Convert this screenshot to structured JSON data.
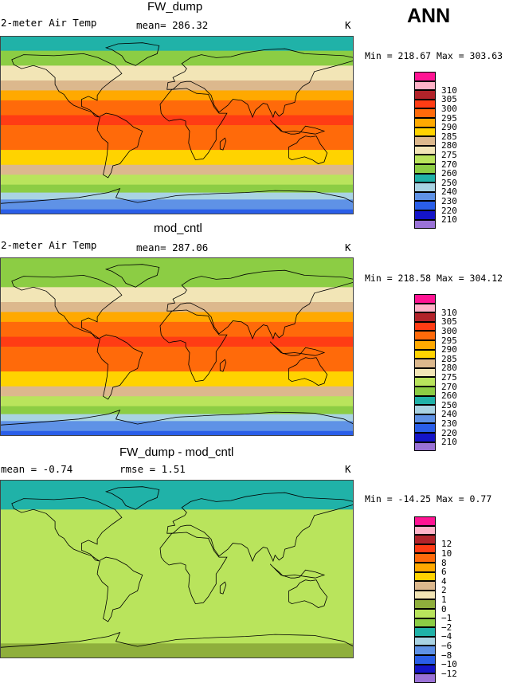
{
  "season": "ANN",
  "palettes": {
    "temp": [
      "#9a72d6",
      "#1414c8",
      "#2a5ee8",
      "#5f92e6",
      "#a9d3e3",
      "#20b2a8",
      "#8ccd44",
      "#b9e45c",
      "#f2e5b6",
      "#dcb88d",
      "#ffd300",
      "#ffa900",
      "#ff6a0a",
      "#ff3c14",
      "#b2232a",
      "#ffb3c8",
      "#ff1493"
    ],
    "diff": [
      "#9a72d6",
      "#1414c8",
      "#2a5ee8",
      "#5f92e6",
      "#a9d3e3",
      "#20b2a8",
      "#8ccd44",
      "#b9e45c",
      "#8faf3c",
      "#f2e5b6",
      "#dcb88d",
      "#ffd300",
      "#ffa900",
      "#ff6a0a",
      "#ff3c14",
      "#b2232a",
      "#ffb3c8",
      "#ff1493"
    ]
  },
  "panels": [
    {
      "title": "FW_dump",
      "left_label": "2-meter Air Temp",
      "center_label": "mean= 286.32",
      "units": "K",
      "minmax": "Min = 218.67 Max = 303.63",
      "legend_ticks": [
        "310",
        "305",
        "300",
        "295",
        "290",
        "285",
        "280",
        "275",
        "270",
        "260",
        "250",
        "240",
        "230",
        "220",
        "210"
      ]
    },
    {
      "title": "mod_cntl",
      "left_label": "2-meter Air Temp",
      "center_label": "mean= 287.06",
      "units": "K",
      "minmax": "Min = 218.58 Max = 304.12",
      "legend_ticks": [
        "310",
        "305",
        "300",
        "295",
        "290",
        "285",
        "280",
        "275",
        "270",
        "260",
        "250",
        "240",
        "230",
        "220",
        "210"
      ]
    },
    {
      "title": "FW_dump - mod_cntl",
      "left_label": "mean =   -0.74",
      "center_label": "rmse =    1.51",
      "units": "K",
      "minmax": "Min = -14.25 Max =    0.77",
      "legend_ticks": [
        "12",
        "10",
        "8",
        "6",
        "4",
        "2",
        "1",
        "0",
        "−1",
        "−2",
        "−4",
        "−6",
        "−8",
        "−10",
        "−12"
      ]
    }
  ],
  "chart_data": [
    {
      "type": "heatmap",
      "title": "FW_dump",
      "variable": "2-meter Air Temp",
      "units": "K",
      "mean": 286.32,
      "min": 218.67,
      "max": 303.63,
      "contour_levels": [
        210,
        220,
        230,
        240,
        250,
        260,
        270,
        275,
        280,
        285,
        290,
        295,
        300,
        305,
        310
      ],
      "zonal_bands_by_latitude": [
        {
          "lat": 90,
          "value": 252
        },
        {
          "lat": 75,
          "value": 262
        },
        {
          "lat": 60,
          "value": 272
        },
        {
          "lat": 45,
          "value": 280
        },
        {
          "lat": 35,
          "value": 288
        },
        {
          "lat": 25,
          "value": 296
        },
        {
          "lat": 10,
          "value": 301
        },
        {
          "lat": 0,
          "value": 301
        },
        {
          "lat": -10,
          "value": 298
        },
        {
          "lat": -25,
          "value": 294
        },
        {
          "lat": -40,
          "value": 284
        },
        {
          "lat": -50,
          "value": 276
        },
        {
          "lat": -60,
          "value": 268
        },
        {
          "lat": -68,
          "value": 255
        },
        {
          "lat": -75,
          "value": 238
        },
        {
          "lat": -85,
          "value": 226
        },
        {
          "lat": -90,
          "value": 222
        }
      ]
    },
    {
      "type": "heatmap",
      "title": "mod_cntl",
      "variable": "2-meter Air Temp",
      "units": "K",
      "mean": 287.06,
      "min": 218.58,
      "max": 304.12,
      "contour_levels": [
        210,
        220,
        230,
        240,
        250,
        260,
        270,
        275,
        280,
        285,
        290,
        295,
        300,
        305,
        310
      ],
      "zonal_bands_by_latitude": [
        {
          "lat": 90,
          "value": 255
        },
        {
          "lat": 75,
          "value": 266
        },
        {
          "lat": 60,
          "value": 273
        },
        {
          "lat": 45,
          "value": 280
        },
        {
          "lat": 35,
          "value": 288
        },
        {
          "lat": 25,
          "value": 296
        },
        {
          "lat": 10,
          "value": 301
        },
        {
          "lat": 0,
          "value": 301
        },
        {
          "lat": -10,
          "value": 298
        },
        {
          "lat": -25,
          "value": 294
        },
        {
          "lat": -40,
          "value": 284
        },
        {
          "lat": -50,
          "value": 276
        },
        {
          "lat": -60,
          "value": 268
        },
        {
          "lat": -68,
          "value": 255
        },
        {
          "lat": -75,
          "value": 238
        },
        {
          "lat": -85,
          "value": 226
        },
        {
          "lat": -90,
          "value": 222
        }
      ]
    },
    {
      "type": "heatmap",
      "title": "FW_dump - mod_cntl",
      "units": "K",
      "mean": -0.74,
      "rmse": 1.51,
      "min": -14.25,
      "max": 0.77,
      "contour_levels": [
        -12,
        -10,
        -8,
        -6,
        -4,
        -2,
        -1,
        0,
        1,
        2,
        4,
        6,
        8,
        10,
        12
      ],
      "zonal_bands_by_latitude": [
        {
          "lat": 90,
          "value": -4
        },
        {
          "lat": 75,
          "value": -3
        },
        {
          "lat": 60,
          "value": -1.5
        },
        {
          "lat": 45,
          "value": -0.5
        },
        {
          "lat": 20,
          "value": -0.3
        },
        {
          "lat": 0,
          "value": -0.2
        },
        {
          "lat": -30,
          "value": -0.3
        },
        {
          "lat": -60,
          "value": -0.5
        },
        {
          "lat": -75,
          "value": 0.3
        },
        {
          "lat": -90,
          "value": 0.3
        }
      ]
    }
  ]
}
